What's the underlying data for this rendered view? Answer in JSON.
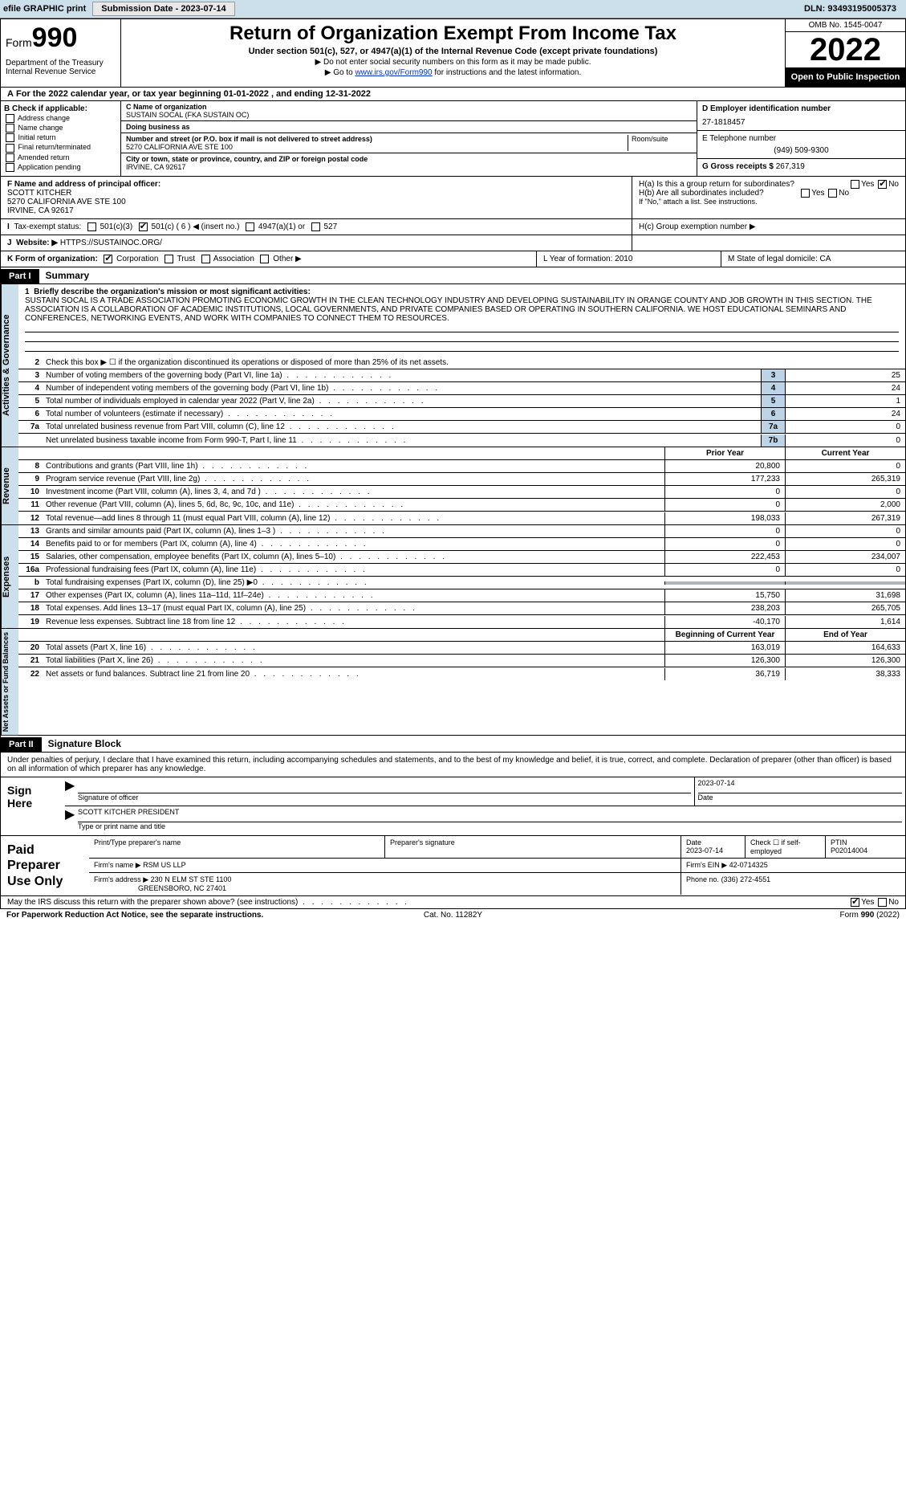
{
  "toolbar": {
    "efile_label": "efile GRAPHIC print",
    "submit_btn": "Submission Date - 2023-07-14",
    "dln": "DLN: 93493195005373"
  },
  "header": {
    "form_word": "Form",
    "form_num": "990",
    "dept": "Department of the Treasury\nInternal Revenue Service",
    "title": "Return of Organization Exempt From Income Tax",
    "sub": "Under section 501(c), 527, or 4947(a)(1) of the Internal Revenue Code (except private foundations)",
    "note1": "▶ Do not enter social security numbers on this form as it may be made public.",
    "note2_pre": "▶ Go to ",
    "note2_link": "www.irs.gov/Form990",
    "note2_post": " for instructions and the latest information.",
    "omb": "OMB No. 1545-0047",
    "year": "2022",
    "open": "Open to Public Inspection"
  },
  "secA": {
    "text": "For the 2022 calendar year, or tax year beginning 01-01-2022   , and ending 12-31-2022"
  },
  "colB": {
    "hdr": "B Check if applicable:",
    "opts": [
      "Address change",
      "Name change",
      "Initial return",
      "Final return/terminated",
      "Amended return",
      "Application pending"
    ]
  },
  "colC": {
    "name_lbl": "C Name of organization",
    "name": "SUSTAIN SOCAL (FKA SUSTAIN OC)",
    "dba_lbl": "Doing business as",
    "dba": "",
    "addr_lbl": "Number and street (or P.O. box if mail is not delivered to street address)",
    "room_lbl": "Room/suite",
    "addr": "5270 CALIFORNIA AVE STE 100",
    "city_lbl": "City or town, state or province, country, and ZIP or foreign postal code",
    "city": "IRVINE, CA  92617"
  },
  "colD": {
    "ein_lbl": "D Employer identification number",
    "ein": "27-1818457",
    "tel_lbl": "E Telephone number",
    "tel": "(949) 509-9300",
    "gross_lbl": "G Gross receipts $",
    "gross": "267,319"
  },
  "rowF": {
    "lbl": "F  Name and address of principal officer:",
    "name": "SCOTT KITCHER",
    "addr1": "5270 CALIFORNIA AVE STE 100",
    "addr2": "IRVINE, CA  92617"
  },
  "rowH": {
    "ha": "H(a)  Is this a group return for subordinates?",
    "hb": "H(b)  Are all subordinates included?",
    "hb_note": "If \"No,\" attach a list. See instructions.",
    "hc": "H(c)  Group exemption number ▶",
    "yes": "Yes",
    "no": "No"
  },
  "rowI": {
    "lbl": "Tax-exempt status:",
    "o1": "501(c)(3)",
    "o2": "501(c) ( 6 ) ◀ (insert no.)",
    "o3": "4947(a)(1) or",
    "o4": "527"
  },
  "rowJ": {
    "lbl": "Website: ▶",
    "val": "HTTPS://SUSTAINOC.ORG/"
  },
  "rowK": {
    "lbl": "K Form of organization:",
    "o1": "Corporation",
    "o2": "Trust",
    "o3": "Association",
    "o4": "Other ▶",
    "L": "L Year of formation: 2010",
    "M": "M State of legal domicile: CA"
  },
  "part1": {
    "tag": "Part I",
    "title": "Summary"
  },
  "vtabs": {
    "ag": "Activities & Governance",
    "rev": "Revenue",
    "exp": "Expenses",
    "nafb": "Net Assets or Fund Balances"
  },
  "desc": {
    "num": "1",
    "lbl": "Briefly describe the organization's mission or most significant activities:",
    "text": "SUSTAIN SOCAL IS A TRADE ASSOCIATION PROMOTING ECONOMIC GROWTH IN THE CLEAN TECHNOLOGY INDUSTRY AND DEVELOPING SUSTAINABILITY IN ORANGE COUNTY AND JOB GROWTH IN THIS SECTION. THE ASSOCIATION IS A COLLABORATION OF ACADEMIC INSTITUTIONS, LOCAL GOVERNMENTS, AND PRIVATE COMPANIES BASED OR OPERATING IN SOUTHERN CALIFORNIA. WE HOST EDUCATIONAL SEMINARS AND CONFERENCES, NETWORKING EVENTS, AND WORK WITH COMPANIES TO CONNECT THEM TO RESOURCES."
  },
  "lines_ag": [
    {
      "n": "2",
      "t": "Check this box ▶ ☐  if the organization discontinued its operations or disposed of more than 25% of its net assets."
    },
    {
      "n": "3",
      "t": "Number of voting members of the governing body (Part VI, line 1a)",
      "box": "3",
      "v": "25"
    },
    {
      "n": "4",
      "t": "Number of independent voting members of the governing body (Part VI, line 1b)",
      "box": "4",
      "v": "24"
    },
    {
      "n": "5",
      "t": "Total number of individuals employed in calendar year 2022 (Part V, line 2a)",
      "box": "5",
      "v": "1"
    },
    {
      "n": "6",
      "t": "Total number of volunteers (estimate if necessary)",
      "box": "6",
      "v": "24"
    },
    {
      "n": "7a",
      "t": "Total unrelated business revenue from Part VIII, column (C), line 12",
      "box": "7a",
      "v": "0"
    },
    {
      "n": "",
      "t": "Net unrelated business taxable income from Form 990-T, Part I, line 11",
      "box": "7b",
      "v": "0"
    }
  ],
  "col_hdrs": {
    "prior": "Prior Year",
    "current": "Current Year",
    "boy": "Beginning of Current Year",
    "eoy": "End of Year"
  },
  "lines_rev": [
    {
      "n": "8",
      "t": "Contributions and grants (Part VIII, line 1h)",
      "p": "20,800",
      "c": "0"
    },
    {
      "n": "9",
      "t": "Program service revenue (Part VIII, line 2g)",
      "p": "177,233",
      "c": "265,319"
    },
    {
      "n": "10",
      "t": "Investment income (Part VIII, column (A), lines 3, 4, and 7d )",
      "p": "0",
      "c": "0"
    },
    {
      "n": "11",
      "t": "Other revenue (Part VIII, column (A), lines 5, 6d, 8c, 9c, 10c, and 11e)",
      "p": "0",
      "c": "2,000"
    },
    {
      "n": "12",
      "t": "Total revenue—add lines 8 through 11 (must equal Part VIII, column (A), line 12)",
      "p": "198,033",
      "c": "267,319"
    }
  ],
  "lines_exp": [
    {
      "n": "13",
      "t": "Grants and similar amounts paid (Part IX, column (A), lines 1–3 )",
      "p": "0",
      "c": "0"
    },
    {
      "n": "14",
      "t": "Benefits paid to or for members (Part IX, column (A), line 4)",
      "p": "0",
      "c": "0"
    },
    {
      "n": "15",
      "t": "Salaries, other compensation, employee benefits (Part IX, column (A), lines 5–10)",
      "p": "222,453",
      "c": "234,007"
    },
    {
      "n": "16a",
      "t": "Professional fundraising fees (Part IX, column (A), line 11e)",
      "p": "0",
      "c": "0"
    },
    {
      "n": "b",
      "t": "Total fundraising expenses (Part IX, column (D), line 25) ▶0",
      "p": "",
      "c": "",
      "grey": true
    },
    {
      "n": "17",
      "t": "Other expenses (Part IX, column (A), lines 11a–11d, 11f–24e)",
      "p": "15,750",
      "c": "31,698"
    },
    {
      "n": "18",
      "t": "Total expenses. Add lines 13–17 (must equal Part IX, column (A), line 25)",
      "p": "238,203",
      "c": "265,705"
    },
    {
      "n": "19",
      "t": "Revenue less expenses. Subtract line 18 from line 12",
      "p": "-40,170",
      "c": "1,614"
    }
  ],
  "lines_nafb": [
    {
      "n": "20",
      "t": "Total assets (Part X, line 16)",
      "p": "163,019",
      "c": "164,633"
    },
    {
      "n": "21",
      "t": "Total liabilities (Part X, line 26)",
      "p": "126,300",
      "c": "126,300"
    },
    {
      "n": "22",
      "t": "Net assets or fund balances. Subtract line 21 from line 20",
      "p": "36,719",
      "c": "38,333"
    }
  ],
  "part2": {
    "tag": "Part II",
    "title": "Signature Block"
  },
  "sig": {
    "decl": "Under penalties of perjury, I declare that I have examined this return, including accompanying schedules and statements, and to the best of my knowledge and belief, it is true, correct, and complete. Declaration of preparer (other than officer) is based on all information of which preparer has any knowledge.",
    "sign_here": "Sign Here",
    "sig_officer": "Signature of officer",
    "date_lbl": "Date",
    "date": "2023-07-14",
    "name": "SCOTT KITCHER  PRESIDENT",
    "name_lbl": "Type or print name and title"
  },
  "paid": {
    "hdr": "Paid Preparer Use Only",
    "r1": {
      "c1": "Print/Type preparer's name",
      "c2": "Preparer's signature",
      "c3_lbl": "Date",
      "c3": "2023-07-14",
      "c4": "Check ☐ if self-employed",
      "c5_lbl": "PTIN",
      "c5": "P02014004"
    },
    "r2": {
      "lbl": "Firm's name    ▶",
      "val": "RSM US LLP",
      "ein_lbl": "Firm's EIN ▶",
      "ein": "42-0714325"
    },
    "r3": {
      "lbl": "Firm's address ▶",
      "val1": "230 N ELM ST STE 1100",
      "val2": "GREENSBORO, NC  27401",
      "ph_lbl": "Phone no.",
      "ph": "(336) 272-4551"
    }
  },
  "footer": {
    "q": "May the IRS discuss this return with the preparer shown above? (see instructions)",
    "yes": "Yes",
    "no": "No",
    "pra": "For Paperwork Reduction Act Notice, see the separate instructions.",
    "cat": "Cat. No. 11282Y",
    "form": "Form 990 (2022)"
  }
}
